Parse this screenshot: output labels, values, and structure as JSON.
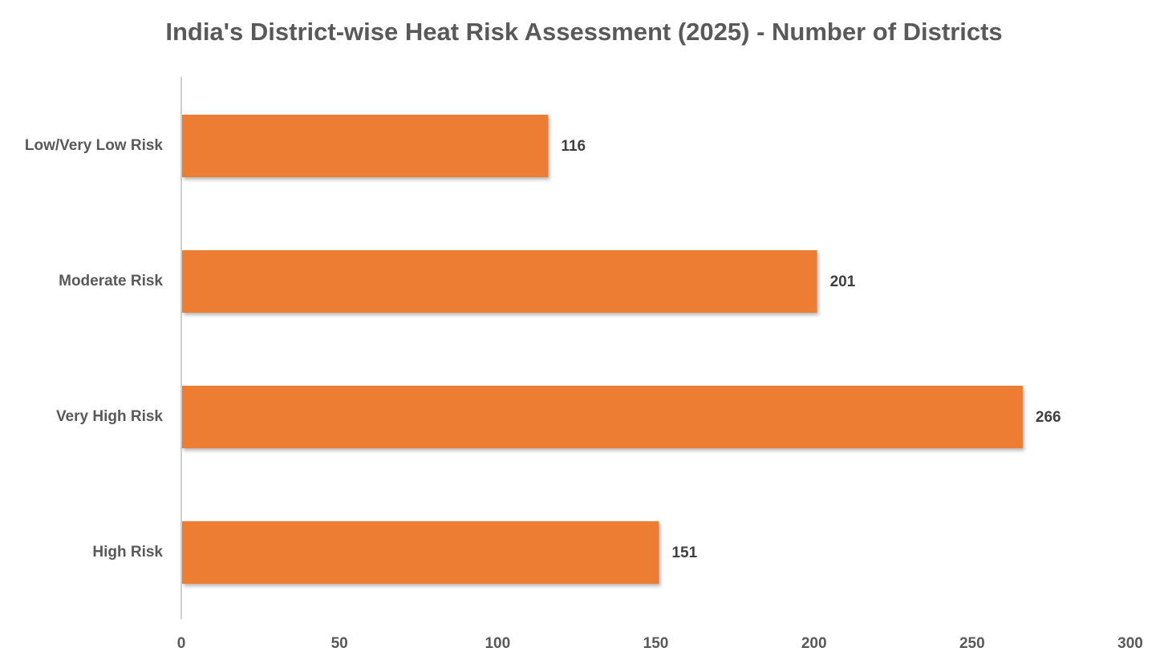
{
  "chart_data": {
    "type": "bar",
    "orientation": "horizontal",
    "title": "India's District-wise Heat Risk Assessment (2025) - Number of Districts",
    "categories": [
      "Low/Very Low Risk",
      "Moderate Risk",
      "Very High Risk",
      "High Risk"
    ],
    "values": [
      116,
      201,
      266,
      151
    ],
    "data_labels": [
      "116",
      "201",
      "266",
      "151"
    ],
    "xlabel": "",
    "ylabel": "",
    "xlim": [
      0,
      300
    ],
    "x_ticks": [
      0,
      50,
      100,
      150,
      200,
      250,
      300
    ],
    "grid": false,
    "legend": "none",
    "bar_color": "#ED7D31"
  }
}
